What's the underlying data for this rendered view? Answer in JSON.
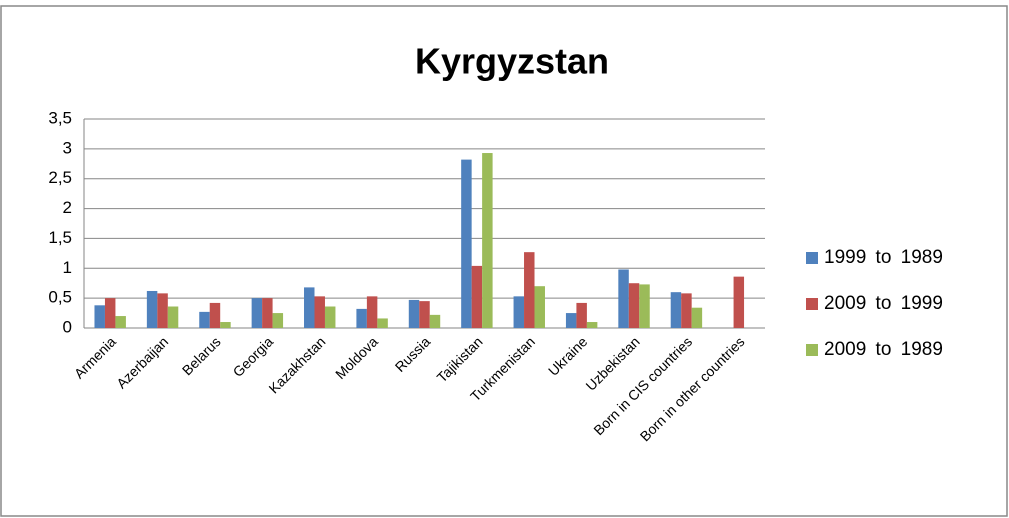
{
  "chart_data": {
    "type": "bar",
    "title": "Kyrgyzstan",
    "categories": [
      "Armenia",
      "Azerbaijan",
      "Belarus",
      "Georgia",
      "Kazakhstan",
      "Moldova",
      "Russia",
      "Tajikistan",
      "Turkmenistan",
      "Ukraine",
      "Uzbekistan",
      "Born in CIS countries",
      "Born in other countries"
    ],
    "series": [
      {
        "name": "1999  to  1989",
        "color": "#4f81bd",
        "values": [
          0.38,
          0.62,
          0.27,
          0.5,
          0.68,
          0.32,
          0.47,
          2.82,
          0.53,
          0.25,
          0.98,
          0.6,
          null
        ]
      },
      {
        "name": "2009  to  1999",
        "color": "#c0504d",
        "values": [
          0.5,
          0.58,
          0.42,
          0.5,
          0.53,
          0.53,
          0.45,
          1.04,
          1.27,
          0.42,
          0.75,
          0.58,
          0.86
        ]
      },
      {
        "name": "2009  to  1989",
        "color": "#9bbb59",
        "values": [
          0.2,
          0.36,
          0.1,
          0.25,
          0.36,
          0.16,
          0.22,
          2.93,
          0.7,
          0.1,
          0.73,
          0.34,
          null
        ]
      }
    ],
    "ylim": [
      0,
      3.5
    ],
    "yticks": [
      0,
      {
        "value": 0.5,
        "label": "0,5"
      },
      1,
      {
        "value": 1.5,
        "label": "1,5"
      },
      2,
      {
        "value": 2.5,
        "label": "2,5"
      },
      3,
      {
        "value": 3.5,
        "label": "3,5"
      }
    ],
    "grid": true,
    "legend": "right"
  }
}
